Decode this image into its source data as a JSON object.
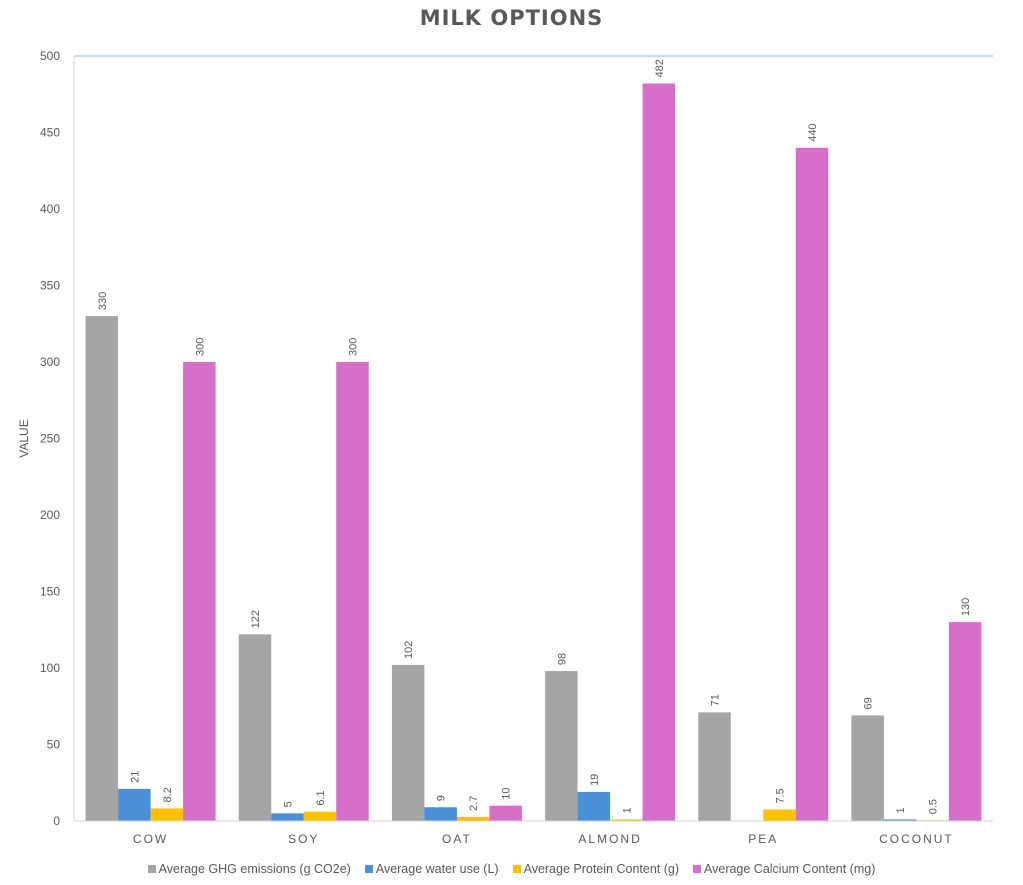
{
  "chart_data": {
    "type": "bar",
    "title": "MILK OPTIONS",
    "xlabel": "",
    "ylabel": "VALUE",
    "ylim": [
      0,
      500
    ],
    "yticks": [
      0,
      50,
      100,
      150,
      200,
      250,
      300,
      350,
      400,
      450,
      500
    ],
    "categories": [
      "COW",
      "SOY",
      "OAT",
      "ALMOND",
      "PEA",
      "COCONUT"
    ],
    "series": [
      {
        "name": "Average GHG emissions (g CO2e)",
        "color": "#A5A5A5",
        "values": [
          330,
          122,
          102,
          98,
          71,
          69
        ]
      },
      {
        "name": "Average water use (L)",
        "color": "#4A90D9",
        "values": [
          21,
          5,
          9,
          19,
          null,
          1
        ]
      },
      {
        "name": "Average Protein Content (g)",
        "color": "#FFC000",
        "values": [
          8.2,
          6.1,
          2.7,
          1,
          7.5,
          0.5
        ]
      },
      {
        "name": "Average Calcium Content (mg)",
        "color": "#D76FCA",
        "values": [
          300,
          300,
          10,
          482,
          440,
          130
        ]
      }
    ],
    "legend_position": "bottom",
    "grid": false
  }
}
